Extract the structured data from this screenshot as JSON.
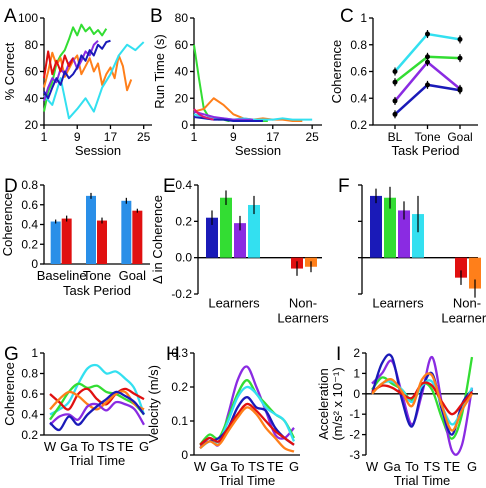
{
  "colors": {
    "navy": "#1a1ab8",
    "blue": "#1f4fd8",
    "green": "#33dd33",
    "purple": "#8a2be2",
    "cyan": "#33e0f0",
    "red": "#e01010",
    "orange": "#ff7f1a",
    "barblue": "#2a8fe8",
    "darkred": "#c01818",
    "pink": "#e01870"
  },
  "chart_data": [
    {
      "panel": "A",
      "type": "line",
      "xlabel": "Session",
      "ylabel": "% Correct",
      "xlim": [
        1,
        27
      ],
      "ylim": [
        20,
        100
      ],
      "xticks": [
        1,
        9,
        17,
        25
      ],
      "xtick_labels": [
        "1",
        "9",
        "17",
        "25"
      ],
      "yticks": [
        20,
        40,
        60,
        80,
        100
      ],
      "ytick_labels": [
        "20",
        "40",
        "60",
        "80",
        "100"
      ],
      "series": [
        {
          "color": "green",
          "x": [
            1,
            2,
            3,
            4,
            5,
            6,
            7,
            8,
            9,
            10,
            11,
            12,
            13,
            14,
            15,
            16
          ],
          "y": [
            30,
            45,
            52,
            66,
            72,
            76,
            84,
            93,
            87,
            95,
            90,
            93,
            88,
            91,
            87,
            92
          ]
        },
        {
          "color": "orange",
          "x": [
            1,
            2,
            3,
            4,
            5,
            6,
            7,
            8,
            9,
            10,
            11,
            12,
            13,
            14,
            15,
            16,
            17,
            18,
            19,
            20,
            21,
            22
          ],
          "y": [
            48,
            60,
            74,
            65,
            70,
            56,
            62,
            68,
            72,
            58,
            64,
            70,
            60,
            66,
            50,
            58,
            63,
            55,
            72,
            64,
            46,
            54
          ]
        },
        {
          "color": "cyan",
          "x": [
            1,
            3,
            5,
            7,
            9,
            11,
            13,
            15,
            17,
            19,
            21,
            23,
            25
          ],
          "y": [
            42,
            35,
            55,
            25,
            32,
            40,
            30,
            48,
            58,
            72,
            80,
            76,
            82
          ]
        },
        {
          "color": "purple",
          "x": [
            1,
            2,
            3,
            4,
            5,
            6,
            7,
            8,
            9,
            10,
            11,
            12,
            13,
            14
          ],
          "y": [
            38,
            48,
            55,
            52,
            62,
            58,
            66,
            70,
            62,
            68,
            75,
            72,
            80,
            83
          ]
        },
        {
          "color": "navy",
          "x": [
            1,
            2,
            3,
            4,
            5,
            6,
            7,
            8,
            9,
            10,
            11,
            12,
            13,
            14,
            15,
            16,
            17
          ],
          "y": [
            45,
            40,
            48,
            55,
            50,
            60,
            55,
            58,
            63,
            72,
            68,
            76,
            72,
            80,
            77,
            82,
            83
          ]
        },
        {
          "color": "red",
          "x": [
            1,
            2,
            3,
            4,
            5,
            6,
            7,
            8
          ],
          "y": [
            55,
            75,
            58,
            68,
            60,
            72,
            64,
            70
          ]
        }
      ]
    },
    {
      "panel": "B",
      "type": "line",
      "xlabel": "Session",
      "ylabel": "Run Time (s)",
      "xlim": [
        1,
        27
      ],
      "ylim": [
        0,
        80
      ],
      "xticks": [
        1,
        9,
        17,
        25
      ],
      "xtick_labels": [
        "1",
        "9",
        "17",
        "25"
      ],
      "yticks": [
        0,
        20,
        40,
        60,
        80
      ],
      "ytick_labels": [
        "0",
        "20",
        "40",
        "60",
        "80"
      ],
      "series": [
        {
          "color": "green",
          "x": [
            1,
            2,
            3,
            4,
            5,
            6,
            7,
            8,
            9,
            10,
            11,
            12,
            13,
            14,
            15,
            16
          ],
          "y": [
            60,
            35,
            12,
            6,
            5,
            4,
            4,
            3,
            4,
            3,
            3,
            4,
            3,
            3,
            3,
            3
          ]
        },
        {
          "color": "orange",
          "x": [
            1,
            3,
            5,
            7,
            9,
            11,
            13,
            15,
            17,
            19,
            21,
            23
          ],
          "y": [
            10,
            12,
            20,
            15,
            8,
            5,
            4,
            5,
            4,
            4,
            3,
            3
          ]
        },
        {
          "color": "cyan",
          "x": [
            1,
            3,
            5,
            7,
            9,
            11,
            13,
            15,
            17,
            19,
            21,
            23,
            25
          ],
          "y": [
            8,
            6,
            5,
            5,
            4,
            5,
            4,
            4,
            4,
            5,
            4,
            4,
            4
          ]
        },
        {
          "color": "purple",
          "x": [
            1,
            3,
            5,
            7,
            9,
            11,
            13
          ],
          "y": [
            10,
            8,
            6,
            5,
            4,
            4,
            4
          ]
        },
        {
          "color": "navy",
          "x": [
            1,
            3,
            5,
            7,
            9,
            11,
            13,
            15
          ],
          "y": [
            6,
            5,
            4,
            4,
            3,
            3,
            3,
            3
          ]
        },
        {
          "color": "pink",
          "x": [
            1,
            2,
            3,
            4,
            5
          ],
          "y": [
            12,
            8,
            6,
            5,
            4
          ]
        }
      ]
    },
    {
      "panel": "C",
      "type": "line",
      "xlabel": "Task Period",
      "ylabel": "Coherence",
      "categories": [
        "BL",
        "Tone",
        "Goal"
      ],
      "ylim": [
        0.2,
        1.0
      ],
      "yticks": [
        0.2,
        0.4,
        0.6,
        0.8,
        1.0
      ],
      "ytick_labels": [
        "0.2",
        "0.4",
        "0.6",
        "0.8",
        "1"
      ],
      "series": [
        {
          "color": "cyan",
          "values": [
            0.6,
            0.88,
            0.84
          ]
        },
        {
          "color": "green",
          "values": [
            0.52,
            0.71,
            0.7
          ]
        },
        {
          "color": "purple",
          "values": [
            0.38,
            0.67,
            0.47
          ]
        },
        {
          "color": "navy",
          "values": [
            0.28,
            0.5,
            0.46
          ]
        }
      ]
    },
    {
      "panel": "D",
      "type": "bar",
      "xlabel": "Task Period",
      "ylabel": "Coherence",
      "categories": [
        "Baseline",
        "Tone",
        "Goal"
      ],
      "ylim": [
        0.0,
        0.8
      ],
      "yticks": [
        0.0,
        0.2,
        0.4,
        0.6,
        0.8
      ],
      "ytick_labels": [
        "0",
        "0.2",
        "0.4",
        "0.6",
        "0.8"
      ],
      "series": [
        {
          "color": "barblue",
          "values": [
            0.43,
            0.69,
            0.64
          ],
          "errors": [
            0.02,
            0.03,
            0.03
          ]
        },
        {
          "color": "red",
          "values": [
            0.46,
            0.44,
            0.54
          ],
          "errors": [
            0.03,
            0.03,
            0.02
          ]
        }
      ]
    },
    {
      "panel": "E",
      "type": "bar",
      "xlabel": "",
      "ylabel": "Δ in Coherence",
      "ylim": [
        -0.2,
        0.4
      ],
      "yticks": [
        -0.2,
        0.0,
        0.2,
        0.4
      ],
      "ytick_labels": [
        "-0.2",
        "0.0",
        "0.2",
        "0.4"
      ],
      "group_labels": [
        "Learners",
        "Non-Learners"
      ],
      "bars": [
        {
          "color": "navy",
          "value": 0.22,
          "error": 0.04
        },
        {
          "color": "green",
          "value": 0.33,
          "error": 0.04
        },
        {
          "color": "purple",
          "value": 0.19,
          "error": 0.04
        },
        {
          "color": "cyan",
          "value": 0.29,
          "error": 0.05
        },
        {
          "color": "red",
          "value": -0.06,
          "error": 0.04
        },
        {
          "color": "orange",
          "value": -0.05,
          "error": 0.03
        }
      ]
    },
    {
      "panel": "F",
      "type": "bar",
      "xlabel": "",
      "ylabel": "",
      "ylim": [
        -0.2,
        0.4
      ],
      "group_labels": [
        "Learners",
        "Non-Learners"
      ],
      "bars": [
        {
          "color": "navy",
          "value": 0.34,
          "error": 0.04
        },
        {
          "color": "green",
          "value": 0.33,
          "error": 0.06
        },
        {
          "color": "purple",
          "value": 0.26,
          "error": 0.05
        },
        {
          "color": "cyan",
          "value": 0.24,
          "error": 0.1
        },
        {
          "color": "red",
          "value": -0.11,
          "error": 0.04
        },
        {
          "color": "orange",
          "value": -0.17,
          "error": 0.05
        }
      ]
    },
    {
      "panel": "G",
      "type": "line",
      "xlabel": "Trial Time",
      "ylabel": "Coherence",
      "xtick_labels": [
        "W",
        "Ga",
        "To",
        "TS",
        "TE",
        "G"
      ],
      "ylim": [
        0.2,
        1.0
      ],
      "yticks": [
        0.2,
        0.4,
        0.6,
        0.8,
        1.0
      ],
      "ytick_labels": [
        "0.2",
        "0.4",
        "0.6",
        "0.8",
        "1"
      ],
      "x": [
        0,
        0.5,
        1,
        1.5,
        2,
        2.5,
        3,
        3.5,
        4,
        4.5,
        5
      ],
      "series": [
        {
          "color": "cyan",
          "values": [
            0.4,
            0.45,
            0.52,
            0.7,
            0.85,
            0.88,
            0.8,
            0.82,
            0.75,
            0.65,
            0.4
          ]
        },
        {
          "color": "green",
          "values": [
            0.35,
            0.48,
            0.62,
            0.7,
            0.66,
            0.68,
            0.62,
            0.6,
            0.55,
            0.5,
            0.4
          ]
        },
        {
          "color": "red",
          "values": [
            0.6,
            0.52,
            0.45,
            0.6,
            0.65,
            0.55,
            0.5,
            0.6,
            0.65,
            0.6,
            0.55
          ]
        },
        {
          "color": "orange",
          "values": [
            0.45,
            0.55,
            0.62,
            0.58,
            0.5,
            0.45,
            0.52,
            0.6,
            0.62,
            0.5,
            0.45
          ]
        },
        {
          "color": "purple",
          "values": [
            0.3,
            0.38,
            0.4,
            0.35,
            0.48,
            0.5,
            0.44,
            0.52,
            0.5,
            0.45,
            0.3
          ]
        },
        {
          "color": "navy",
          "values": [
            0.32,
            0.25,
            0.38,
            0.3,
            0.4,
            0.48,
            0.55,
            0.62,
            0.58,
            0.52,
            0.4
          ]
        }
      ]
    },
    {
      "panel": "H",
      "type": "line",
      "xlabel": "Trial Time",
      "ylabel": "Velocity (m/s)",
      "xtick_labels": [
        "W",
        "Ga",
        "To",
        "TS",
        "TE",
        "G"
      ],
      "ylim": [
        0.0,
        0.3
      ],
      "yticks": [
        0.0,
        0.1,
        0.2,
        0.3
      ],
      "ytick_labels": [
        "0",
        "0.1",
        "0.2",
        "0.3"
      ],
      "x": [
        0,
        0.5,
        1,
        1.5,
        2,
        2.5,
        3,
        3.5,
        4,
        4.5,
        5
      ],
      "series": [
        {
          "color": "purple",
          "values": [
            0.02,
            0.05,
            0.03,
            0.12,
            0.22,
            0.26,
            0.2,
            0.13,
            0.06,
            0.05,
            0.08
          ]
        },
        {
          "color": "green",
          "values": [
            0.03,
            0.06,
            0.05,
            0.11,
            0.18,
            0.22,
            0.18,
            0.15,
            0.12,
            0.1,
            0.05
          ]
        },
        {
          "color": "cyan",
          "values": [
            0.02,
            0.04,
            0.04,
            0.1,
            0.17,
            0.2,
            0.18,
            0.14,
            0.12,
            0.1,
            0.04
          ]
        },
        {
          "color": "navy",
          "values": [
            0.03,
            0.04,
            0.05,
            0.08,
            0.14,
            0.17,
            0.14,
            0.13,
            0.08,
            0.05,
            0.03
          ]
        },
        {
          "color": "red",
          "values": [
            0.03,
            0.05,
            0.04,
            0.08,
            0.12,
            0.15,
            0.13,
            0.1,
            0.07,
            0.05,
            0.03
          ]
        },
        {
          "color": "orange",
          "values": [
            0.02,
            0.04,
            0.03,
            0.07,
            0.11,
            0.14,
            0.12,
            0.08,
            0.05,
            0.02,
            0.01
          ]
        }
      ]
    },
    {
      "panel": "I",
      "type": "line",
      "xlabel": "Trial Time",
      "ylabel": "Acceleration (m/s² x 10⁻¹)",
      "xtick_labels": [
        "W",
        "Ga",
        "To",
        "TS",
        "TE",
        "G"
      ],
      "ylim": [
        -3,
        2
      ],
      "yticks": [
        -3,
        -2,
        -1,
        0,
        1,
        2
      ],
      "ytick_labels": [
        "-3",
        "-2",
        "-1",
        "0",
        "1",
        "2"
      ],
      "x": [
        0,
        0.5,
        1,
        1.5,
        2,
        2.5,
        3,
        3.5,
        4,
        4.5,
        5
      ],
      "series": [
        {
          "color": "green",
          "values": [
            0.2,
            0.8,
            0.5,
            0.2,
            -0.3,
            0.5,
            0.2,
            -1.2,
            -2.2,
            -1.0,
            1.8
          ]
        },
        {
          "color": "purple",
          "values": [
            0.5,
            1.0,
            1.6,
            0.0,
            -1.5,
            0.0,
            1.8,
            -0.5,
            -2.8,
            -2.5,
            0.3
          ]
        },
        {
          "color": "navy",
          "values": [
            0.0,
            1.5,
            1.8,
            -0.3,
            -1.6,
            0.2,
            1.0,
            -0.8,
            -2.0,
            -0.5,
            0.2
          ]
        },
        {
          "color": "cyan",
          "values": [
            0.0,
            0.5,
            0.6,
            0.2,
            -0.4,
            0.4,
            0.6,
            -0.6,
            -1.5,
            -0.8,
            0.3
          ]
        },
        {
          "color": "red",
          "values": [
            0.1,
            0.4,
            0.3,
            0.0,
            -0.2,
            0.5,
            0.4,
            -0.4,
            -1.0,
            -0.5,
            0.1
          ]
        },
        {
          "color": "orange",
          "values": [
            0.0,
            0.5,
            0.7,
            0.1,
            -0.6,
            0.7,
            0.9,
            -0.6,
            -1.8,
            -0.8,
            0.0
          ]
        }
      ]
    }
  ]
}
